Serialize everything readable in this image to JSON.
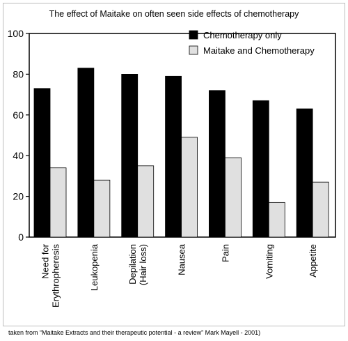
{
  "chart_data": {
    "type": "bar",
    "title": "The effect of Maitake on often seen side effects of chemotherapy",
    "categories": [
      [
        "Need for",
        "Erythropheresis"
      ],
      [
        "Leukopenia"
      ],
      [
        "Depilation",
        "(Hair loss)"
      ],
      [
        "Nausea"
      ],
      [
        "Pain"
      ],
      [
        "Vomiting"
      ],
      [
        "Appetite"
      ]
    ],
    "series": [
      {
        "name": "Chemotherapy only",
        "color": "#000000",
        "values": [
          73,
          83,
          80,
          79,
          72,
          67,
          63
        ]
      },
      {
        "name": "Maitake and Chemotherapy",
        "color": "#e0e0e0",
        "values": [
          34,
          28,
          35,
          49,
          39,
          17,
          27
        ]
      }
    ],
    "ylim": [
      0,
      100
    ],
    "yticks": [
      0,
      20,
      40,
      60,
      80,
      100
    ],
    "xlabel": "",
    "ylabel": "",
    "grid": false,
    "legend_position": "top-right"
  },
  "caption": "taken from “Maitake Extracts and their therapeutic potential - a review” Mark Mayell - 2001)"
}
